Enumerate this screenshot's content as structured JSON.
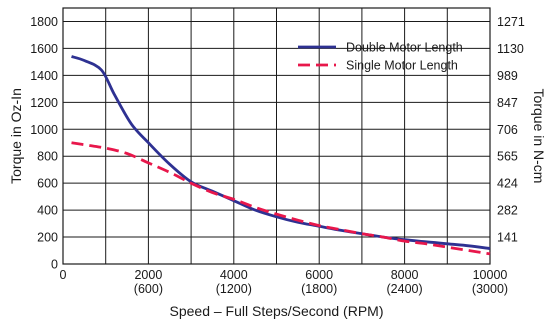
{
  "chart_data": {
    "type": "line",
    "xlabel": "Speed – Full Steps/Second (RPM)",
    "ylabel": "Torque in Oz-In",
    "y2label": "Torque in N-cm",
    "xlim": [
      0,
      10000
    ],
    "ylim": [
      0,
      1900
    ],
    "x_ticks": [
      {
        "value": 0,
        "label": "0",
        "rpm": ""
      },
      {
        "value": 2000,
        "label": "2000",
        "rpm": "(600)"
      },
      {
        "value": 4000,
        "label": "4000",
        "rpm": "(1200)"
      },
      {
        "value": 6000,
        "label": "6000",
        "rpm": "(1800)"
      },
      {
        "value": 8000,
        "label": "8000",
        "rpm": "(2400)"
      },
      {
        "value": 10000,
        "label": "10000",
        "rpm": "(3000)"
      }
    ],
    "x_gridlines": [
      1000,
      2000,
      3000,
      4000,
      5000,
      6000,
      7000,
      8000,
      9000
    ],
    "y_ticks": [
      0,
      200,
      400,
      600,
      800,
      1000,
      1200,
      1400,
      1600,
      1800
    ],
    "y2_ticks": [
      {
        "value": 141,
        "label": "141"
      },
      {
        "value": 282,
        "label": "282"
      },
      {
        "value": 424,
        "label": "424"
      },
      {
        "value": 565,
        "label": "565"
      },
      {
        "value": 706,
        "label": "706"
      },
      {
        "value": 847,
        "label": "847"
      },
      {
        "value": 989,
        "label": "989"
      },
      {
        "value": 1130,
        "label": "1130"
      },
      {
        "value": 1271,
        "label": "1271"
      }
    ],
    "y2_scale_oz_in_per_ncm": 1.4162,
    "grid": true,
    "legend_position": "top-right",
    "series": [
      {
        "name": "Double Motor Length",
        "color": "#2e3192",
        "dash": "solid",
        "x": [
          200,
          500,
          900,
          1200,
          1600,
          2000,
          2500,
          3000,
          3500,
          4000,
          4500,
          5000,
          5500,
          6000,
          6500,
          7000,
          7500,
          8000,
          8500,
          9000,
          9500,
          10000
        ],
        "y": [
          1540,
          1510,
          1440,
          1260,
          1040,
          900,
          740,
          610,
          540,
          470,
          400,
          350,
          310,
          280,
          250,
          225,
          200,
          180,
          165,
          150,
          135,
          115
        ]
      },
      {
        "name": "Single Motor Length",
        "color": "#e8174b",
        "dash": "dashed",
        "x": [
          200,
          600,
          1000,
          1500,
          2000,
          2500,
          3000,
          3500,
          4000,
          4500,
          5000,
          5500,
          6000,
          6500,
          7000,
          7500,
          8000,
          8500,
          9000,
          9500,
          10000
        ],
        "y": [
          900,
          880,
          860,
          820,
          750,
          680,
          600,
          530,
          480,
          420,
          370,
          325,
          285,
          255,
          225,
          200,
          170,
          150,
          125,
          100,
          75
        ]
      }
    ]
  }
}
